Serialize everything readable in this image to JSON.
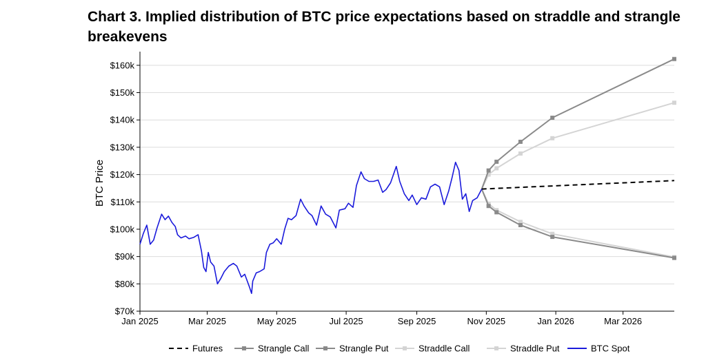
{
  "chart_data": {
    "type": "line",
    "title": "Chart 3. Implied distribution of BTC price expectations based on straddle and strangle breakevens",
    "xlabel": "",
    "ylabel": "BTC Price",
    "xlim": [
      "2025-01-01",
      "2026-04-15"
    ],
    "ylim": [
      70000,
      165000
    ],
    "grid": {
      "horizontal": true,
      "vertical": false
    },
    "legend_position": "bottom",
    "x_ticks": [
      {
        "date": "2025-01-01",
        "label": "Jan 2025"
      },
      {
        "date": "2025-03-01",
        "label": "Mar 2025"
      },
      {
        "date": "2025-05-01",
        "label": "May 2025"
      },
      {
        "date": "2025-07-01",
        "label": "Jul 2025"
      },
      {
        "date": "2025-09-01",
        "label": "Sep 2025"
      },
      {
        "date": "2025-11-01",
        "label": "Nov 2025"
      },
      {
        "date": "2026-01-01",
        "label": "Jan 2026"
      },
      {
        "date": "2026-03-01",
        "label": "Mar 2026"
      }
    ],
    "y_ticks": [
      {
        "value": 70000,
        "label": "$70k"
      },
      {
        "value": 80000,
        "label": "$80k"
      },
      {
        "value": 90000,
        "label": "$90k"
      },
      {
        "value": 100000,
        "label": "$100k"
      },
      {
        "value": 110000,
        "label": "$110k"
      },
      {
        "value": 120000,
        "label": "$120k"
      },
      {
        "value": 130000,
        "label": "$130k"
      },
      {
        "value": 140000,
        "label": "$140k"
      },
      {
        "value": 150000,
        "label": "$150k"
      },
      {
        "value": 160000,
        "label": "$160k"
      }
    ],
    "series": [
      {
        "name": "Futures",
        "color": "#000000",
        "style": "dashed",
        "marker": false,
        "points": [
          [
            "2025-10-28",
            114700
          ],
          [
            "2026-04-15",
            117800
          ]
        ]
      },
      {
        "name": "Strangle Call",
        "color": "#8a8a8a",
        "style": "solid",
        "marker": true,
        "points": [
          [
            "2025-10-28",
            114700
          ],
          [
            "2025-11-03",
            121500
          ],
          [
            "2025-11-10",
            124700
          ],
          [
            "2025-12-01",
            132000
          ],
          [
            "2025-12-29",
            140800
          ],
          [
            "2026-04-15",
            162300
          ]
        ]
      },
      {
        "name": "Strangle Put",
        "color": "#8a8a8a",
        "style": "solid",
        "marker": true,
        "points": [
          [
            "2025-10-28",
            114700
          ],
          [
            "2025-11-03",
            108500
          ],
          [
            "2025-11-10",
            106200
          ],
          [
            "2025-12-01",
            101500
          ],
          [
            "2025-12-29",
            97200
          ],
          [
            "2026-04-15",
            89500
          ]
        ]
      },
      {
        "name": "Straddle Call",
        "color": "#d4d4d4",
        "style": "solid",
        "marker": true,
        "points": [
          [
            "2025-10-28",
            114700
          ],
          [
            "2025-11-03",
            120000
          ],
          [
            "2025-11-10",
            122300
          ],
          [
            "2025-12-01",
            127700
          ],
          [
            "2025-12-29",
            133300
          ],
          [
            "2026-04-15",
            146300
          ]
        ]
      },
      {
        "name": "Straddle Put",
        "color": "#d4d4d4",
        "style": "solid",
        "marker": true,
        "points": [
          [
            "2025-10-28",
            114700
          ],
          [
            "2025-11-03",
            109300
          ],
          [
            "2025-11-10",
            107000
          ],
          [
            "2025-12-01",
            102700
          ],
          [
            "2025-12-29",
            98300
          ],
          [
            "2026-04-15",
            89800
          ]
        ]
      },
      {
        "name": "BTC Spot",
        "color": "#1a1adb",
        "style": "solid",
        "marker": false,
        "points": [
          [
            "2025-01-01",
            94500
          ],
          [
            "2025-01-04",
            98500
          ],
          [
            "2025-01-07",
            101500
          ],
          [
            "2025-01-10",
            94500
          ],
          [
            "2025-01-13",
            96000
          ],
          [
            "2025-01-16",
            100500
          ],
          [
            "2025-01-20",
            105500
          ],
          [
            "2025-01-23",
            103500
          ],
          [
            "2025-01-26",
            104800
          ],
          [
            "2025-01-29",
            102500
          ],
          [
            "2025-02-01",
            101000
          ],
          [
            "2025-02-03",
            98000
          ],
          [
            "2025-02-06",
            96800
          ],
          [
            "2025-02-10",
            97500
          ],
          [
            "2025-02-13",
            96500
          ],
          [
            "2025-02-17",
            97000
          ],
          [
            "2025-02-21",
            98000
          ],
          [
            "2025-02-24",
            92000
          ],
          [
            "2025-02-26",
            86000
          ],
          [
            "2025-02-28",
            84500
          ],
          [
            "2025-03-02",
            91500
          ],
          [
            "2025-03-04",
            88000
          ],
          [
            "2025-03-07",
            86500
          ],
          [
            "2025-03-10",
            80000
          ],
          [
            "2025-03-13",
            82000
          ],
          [
            "2025-03-16",
            84500
          ],
          [
            "2025-03-20",
            86500
          ],
          [
            "2025-03-24",
            87500
          ],
          [
            "2025-03-27",
            86500
          ],
          [
            "2025-03-31",
            82500
          ],
          [
            "2025-04-03",
            83500
          ],
          [
            "2025-04-07",
            79000
          ],
          [
            "2025-04-09",
            76500
          ],
          [
            "2025-04-10",
            81000
          ],
          [
            "2025-04-13",
            84000
          ],
          [
            "2025-04-16",
            84500
          ],
          [
            "2025-04-20",
            85500
          ],
          [
            "2025-04-22",
            91500
          ],
          [
            "2025-04-25",
            94500
          ],
          [
            "2025-04-28",
            95000
          ],
          [
            "2025-05-01",
            96500
          ],
          [
            "2025-05-05",
            94500
          ],
          [
            "2025-05-08",
            100000
          ],
          [
            "2025-05-11",
            104000
          ],
          [
            "2025-05-14",
            103500
          ],
          [
            "2025-05-18",
            105000
          ],
          [
            "2025-05-22",
            111000
          ],
          [
            "2025-05-25",
            108500
          ],
          [
            "2025-05-29",
            106000
          ],
          [
            "2025-06-01",
            105000
          ],
          [
            "2025-06-05",
            101500
          ],
          [
            "2025-06-09",
            108500
          ],
          [
            "2025-06-13",
            105500
          ],
          [
            "2025-06-17",
            104500
          ],
          [
            "2025-06-22",
            100500
          ],
          [
            "2025-06-25",
            107000
          ],
          [
            "2025-06-30",
            107500
          ],
          [
            "2025-07-03",
            109500
          ],
          [
            "2025-07-07",
            108000
          ],
          [
            "2025-07-10",
            116000
          ],
          [
            "2025-07-14",
            121000
          ],
          [
            "2025-07-17",
            118500
          ],
          [
            "2025-07-21",
            117500
          ],
          [
            "2025-07-25",
            117500
          ],
          [
            "2025-07-29",
            118000
          ],
          [
            "2025-08-02",
            113500
          ],
          [
            "2025-08-05",
            114500
          ],
          [
            "2025-08-09",
            117000
          ],
          [
            "2025-08-14",
            123000
          ],
          [
            "2025-08-17",
            117500
          ],
          [
            "2025-08-21",
            113000
          ],
          [
            "2025-08-25",
            110500
          ],
          [
            "2025-08-28",
            112500
          ],
          [
            "2025-09-01",
            109000
          ],
          [
            "2025-09-05",
            111500
          ],
          [
            "2025-09-09",
            111000
          ],
          [
            "2025-09-13",
            115500
          ],
          [
            "2025-09-17",
            116500
          ],
          [
            "2025-09-21",
            115500
          ],
          [
            "2025-09-25",
            109000
          ],
          [
            "2025-09-29",
            114000
          ],
          [
            "2025-10-02",
            119000
          ],
          [
            "2025-10-05",
            124500
          ],
          [
            "2025-10-08",
            121500
          ],
          [
            "2025-10-11",
            111000
          ],
          [
            "2025-10-14",
            113000
          ],
          [
            "2025-10-17",
            106500
          ],
          [
            "2025-10-20",
            110500
          ],
          [
            "2025-10-24",
            111500
          ],
          [
            "2025-10-28",
            114700
          ]
        ]
      }
    ]
  }
}
